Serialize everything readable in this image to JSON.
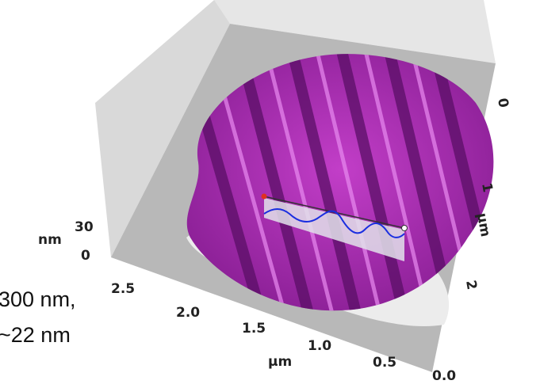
{
  "left_annotation": {
    "lines": [
      "300 nm,",
      "~22 nm"
    ]
  },
  "z_axis": {
    "unit": "nm",
    "ticks": [
      "30",
      "0"
    ]
  },
  "x_axis": {
    "unit": "µm",
    "ticks": [
      "2.5",
      "2.0",
      "1.5",
      "1.0",
      "0.5",
      "0.0"
    ]
  },
  "y_axis": {
    "unit": "µm",
    "ticks": [
      "0",
      "1",
      "2"
    ]
  }
}
